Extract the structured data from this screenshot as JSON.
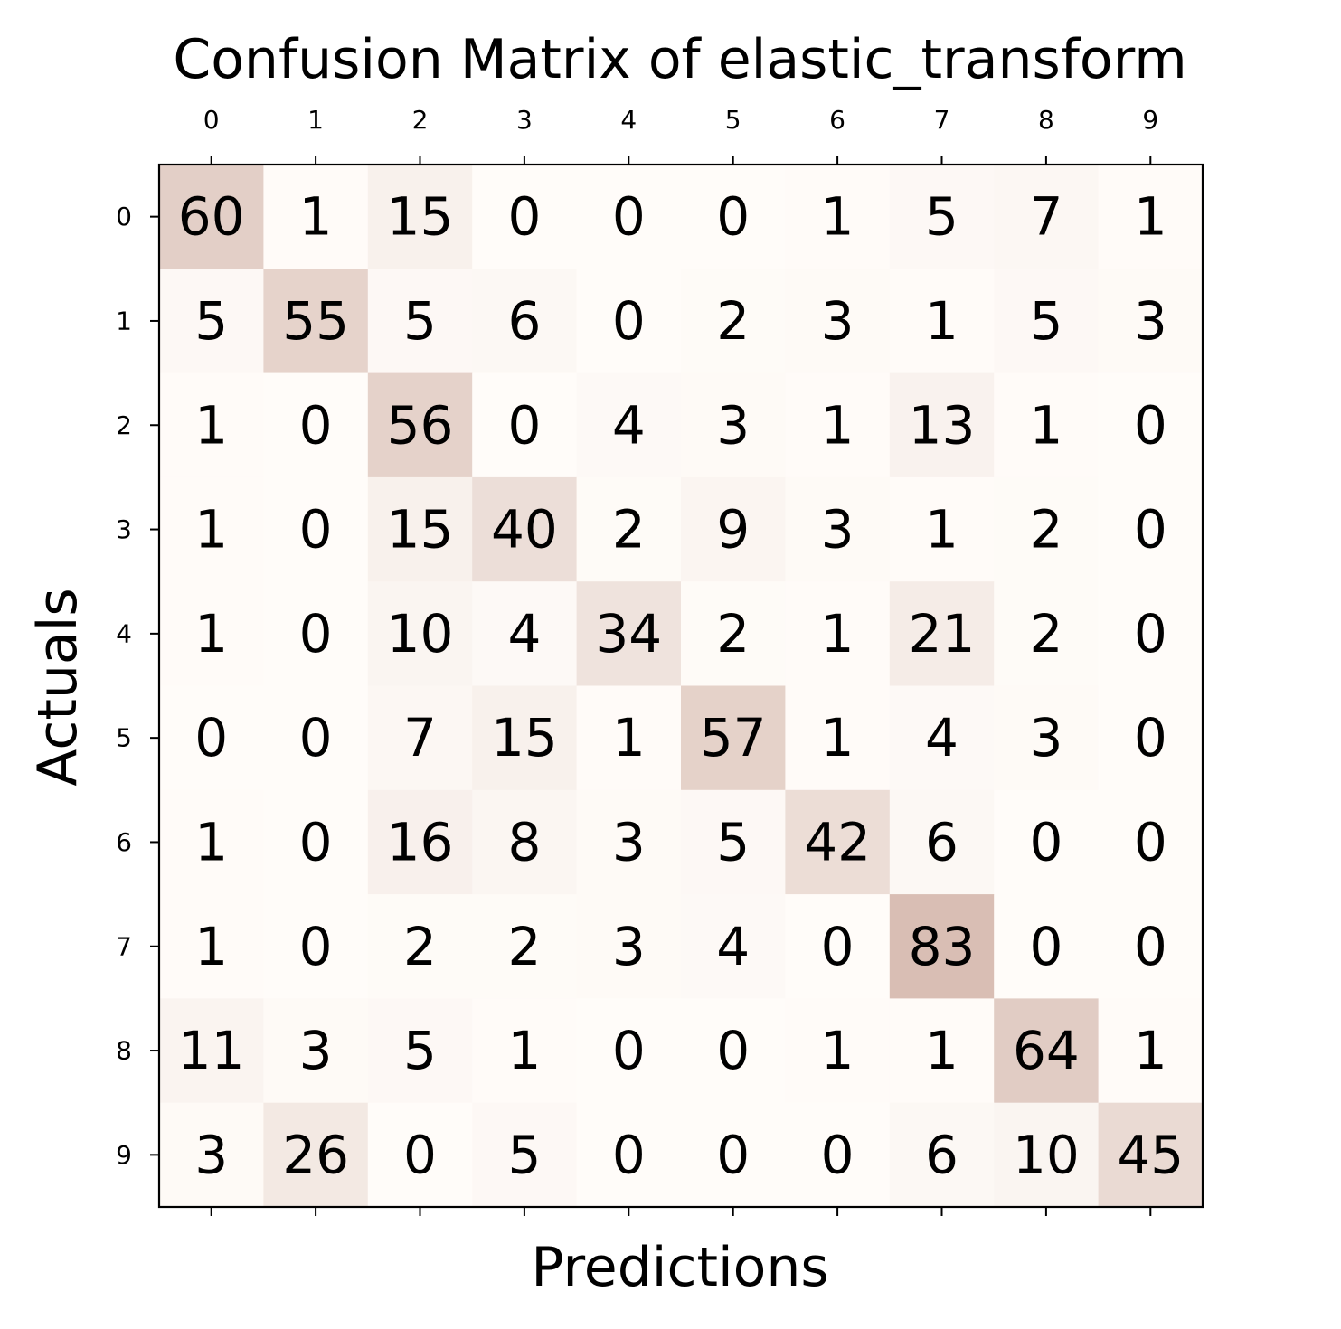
{
  "chart_data": {
    "type": "heatmap",
    "title": "Confusion Matrix of elastic_transform",
    "xlabel": "Predictions",
    "ylabel": "Actuals",
    "x_categories": [
      "0",
      "1",
      "2",
      "3",
      "4",
      "5",
      "6",
      "7",
      "8",
      "9"
    ],
    "y_categories": [
      "0",
      "1",
      "2",
      "3",
      "4",
      "5",
      "6",
      "7",
      "8",
      "9"
    ],
    "x_tick_position": "top",
    "values": [
      [
        60,
        1,
        15,
        0,
        0,
        0,
        1,
        5,
        7,
        1
      ],
      [
        5,
        55,
        5,
        6,
        0,
        2,
        3,
        1,
        5,
        3
      ],
      [
        1,
        0,
        56,
        0,
        4,
        3,
        1,
        13,
        1,
        0
      ],
      [
        1,
        0,
        15,
        40,
        2,
        9,
        3,
        1,
        2,
        0
      ],
      [
        1,
        0,
        10,
        4,
        34,
        2,
        1,
        21,
        2,
        0
      ],
      [
        0,
        0,
        7,
        15,
        1,
        57,
        1,
        4,
        3,
        0
      ],
      [
        1,
        0,
        16,
        8,
        3,
        5,
        42,
        6,
        0,
        0
      ],
      [
        1,
        0,
        2,
        2,
        3,
        4,
        0,
        83,
        0,
        0
      ],
      [
        11,
        3,
        5,
        1,
        0,
        0,
        1,
        1,
        64,
        1
      ],
      [
        3,
        26,
        0,
        5,
        0,
        0,
        0,
        6,
        10,
        45
      ]
    ],
    "colormap": "Oranges",
    "color_low": "#fff5eb",
    "color_high": "#7f2704",
    "alpha": 0.3,
    "vmin": 0,
    "vmax": 83,
    "grid": false
  }
}
